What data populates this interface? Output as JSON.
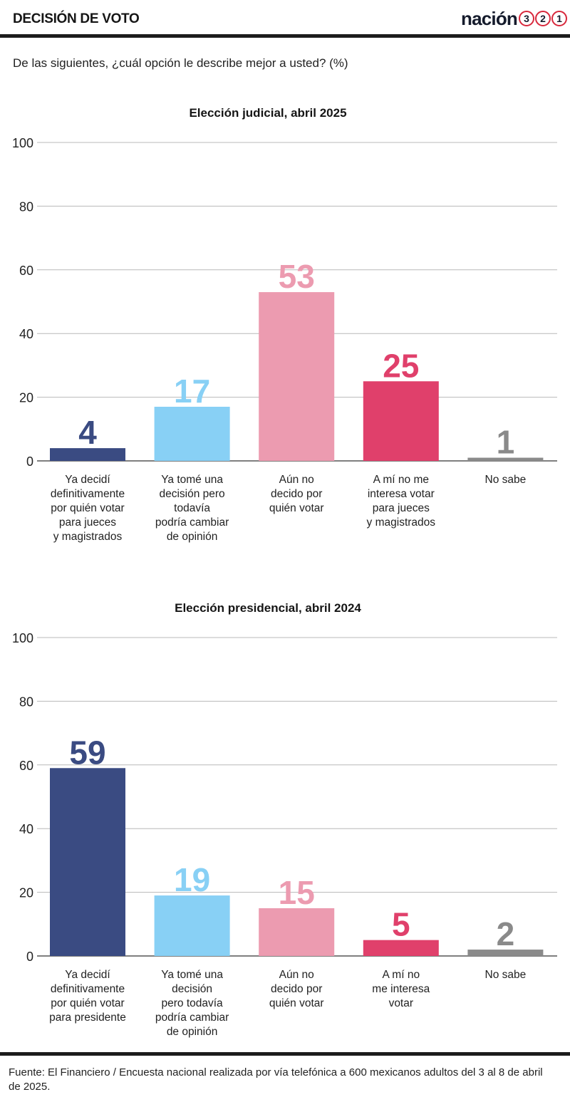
{
  "header": {
    "title": "DECISIÓN DE VOTO",
    "brand_word": "nación",
    "brand_digits": [
      "3",
      "2",
      "1"
    ]
  },
  "question": "De las siguientes, ¿cuál opción le describe mejor a usted? (%)",
  "colors": {
    "decided": "#3a4b82",
    "might_change": "#88d0f5",
    "undecided": "#ec9bb0",
    "not_interested": "#e0406b",
    "dont_know": "#8a8a8a",
    "brand_red": "#d8283c"
  },
  "chart_data": [
    {
      "type": "bar",
      "title": "Elección judicial, abril 2025",
      "categories": [
        "Ya decidí definitivamente por quién votar para jueces y magistrados",
        "Ya tomé una decisión pero todavía podría cambiar de opinión",
        "Aún no decido por quién votar",
        "A mí no me interesa votar para jueces y magistrados",
        "No sabe"
      ],
      "category_lines": [
        [
          "Ya decidí",
          "definitivamente",
          "por quién votar",
          "para jueces",
          "y magistrados"
        ],
        [
          "Ya tomé una",
          "decisión pero",
          "todavía",
          "podría cambiar",
          "de opinión"
        ],
        [
          "Aún no",
          "decido por",
          "quién votar"
        ],
        [
          "A mí no me",
          "interesa votar",
          "para jueces",
          "y magistrados"
        ],
        [
          "No sabe"
        ]
      ],
      "values": [
        4,
        17,
        53,
        25,
        1
      ],
      "ylim": [
        0,
        100
      ],
      "yticks": [
        0,
        20,
        40,
        60,
        80,
        100
      ],
      "grid": true
    },
    {
      "type": "bar",
      "title": "Elección presidencial, abril 2024",
      "categories": [
        "Ya decidí definitivamente por quién votar para presidente",
        "Ya tomé una decisión pero todavía podría cambiar de opinión",
        "Aún no decido por quién votar",
        "A mí no me interesa votar",
        "No sabe"
      ],
      "category_lines": [
        [
          "Ya decidí",
          "definitivamente",
          "por quién votar",
          "para presidente"
        ],
        [
          "Ya tomé una",
          "decisión",
          "pero todavía",
          "podría cambiar",
          "de opinión"
        ],
        [
          "Aún no",
          "decido por",
          "quién votar"
        ],
        [
          "A mí no",
          "me interesa",
          "votar"
        ],
        [
          "No sabe"
        ]
      ],
      "values": [
        59,
        19,
        15,
        5,
        2
      ],
      "ylim": [
        0,
        100
      ],
      "yticks": [
        0,
        20,
        40,
        60,
        80,
        100
      ],
      "grid": true
    }
  ],
  "footer": {
    "source": "Fuente: El Financiero / Encuesta nacional realizada por vía telefónica a 600 mexicanos adultos del 3 al 8 de abril de 2025."
  }
}
